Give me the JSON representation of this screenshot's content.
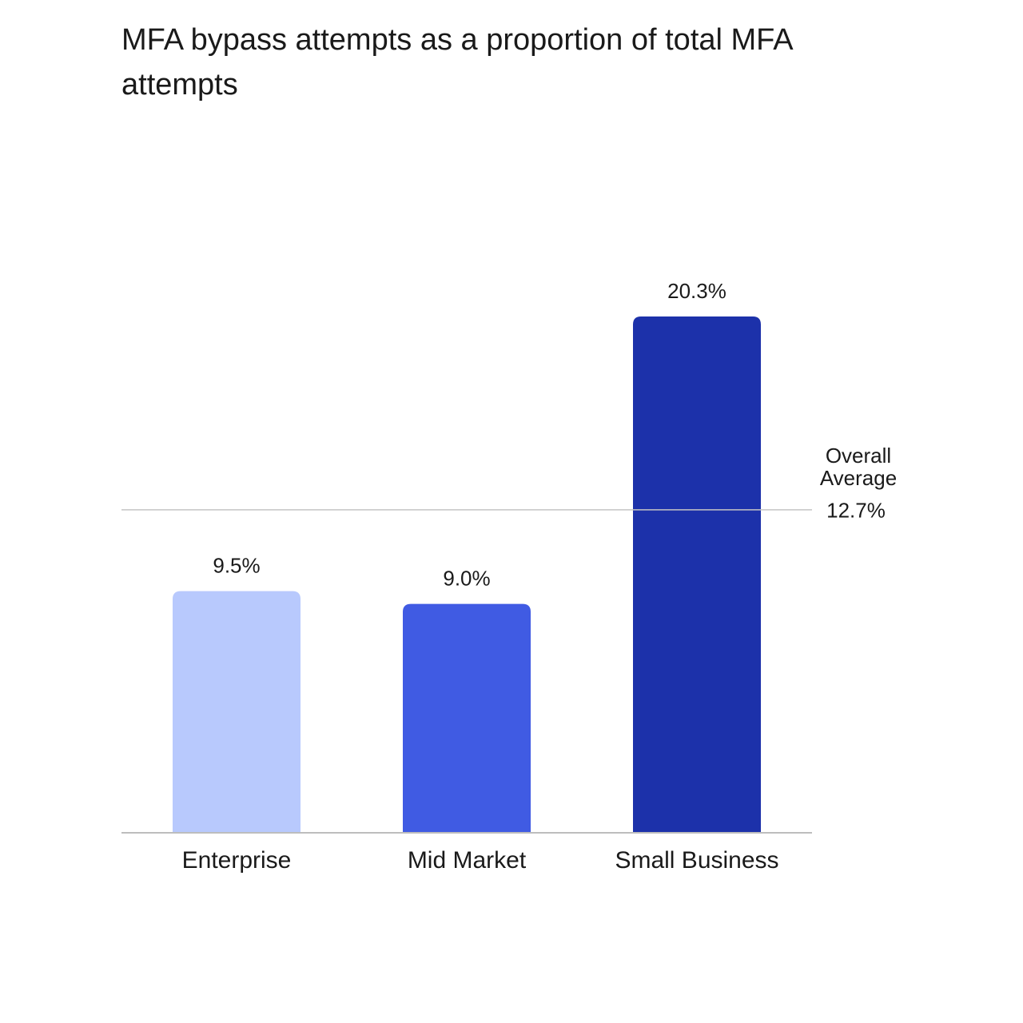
{
  "chart_data": {
    "type": "bar",
    "title": "MFA bypass attempts as a proportion of total MFA attempts",
    "categories": [
      "Enterprise",
      "Mid Market",
      "Small Business"
    ],
    "values": [
      9.5,
      9.0,
      20.3
    ],
    "value_labels": [
      "9.5%",
      "9.0%",
      "20.3%"
    ],
    "colors": [
      "#b8c9fd",
      "#405be3",
      "#1c31aa"
    ],
    "reference_line": {
      "label": "Overall Average",
      "value": 12.7,
      "value_label": "12.7%"
    }
  }
}
